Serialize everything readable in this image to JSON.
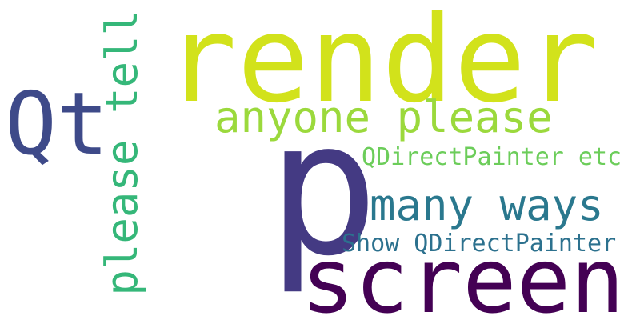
{
  "background": "#ffffff",
  "words": {
    "render": {
      "text": "render",
      "color": "#d2e21b"
    },
    "p": {
      "text": "p",
      "color": "#443a83"
    },
    "screen": {
      "text": "screen",
      "color": "#440154"
    },
    "qt": {
      "text": "Qt",
      "color": "#3e4a89"
    },
    "please_tell": {
      "text": "please tell",
      "color": "#35b779"
    },
    "anyone_please": {
      "text": "anyone please",
      "color": "#9bd93c"
    },
    "qdirectpainter_etc": {
      "text": "QDirectPainter etc",
      "color": "#6ccd5a"
    },
    "many_ways": {
      "text": "many ways",
      "color": "#2a788e"
    },
    "show_qdirectpainter": {
      "text": "Show QDirectPainter",
      "color": "#2c718e"
    }
  }
}
